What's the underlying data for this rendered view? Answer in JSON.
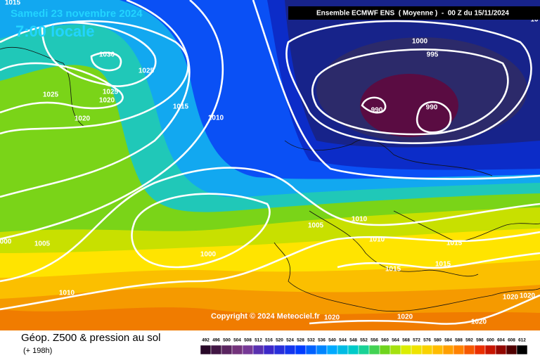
{
  "header": {
    "date": "Samedi 23 novembre 2024",
    "time": "7:00 locale",
    "model": "Ensemble ECMWF ENS  ( Moyenne )  -  00 Z du 15/11/2024"
  },
  "isobar_labels": [
    "1015",
    "1030",
    "1025",
    "1025",
    "1025",
    "1020",
    "1020",
    "1015",
    "1010",
    "1000",
    "995",
    "990",
    "990",
    "1005",
    "1010",
    "1010",
    "1000",
    "1005",
    "000",
    "1010",
    "1015",
    "1015",
    "1015",
    "1020",
    "1020",
    "1020",
    "1020",
    "1020",
    "10"
  ],
  "copyright": "Copyright © 2024 Meteociel.fr",
  "footer": {
    "title": "Géop. Z500 & pression au sol",
    "lead_time": "(+ 198h)"
  },
  "legend": {
    "values": [
      492,
      496,
      500,
      504,
      508,
      512,
      516,
      520,
      524,
      528,
      532,
      536,
      540,
      544,
      548,
      552,
      556,
      560,
      564,
      568,
      572,
      576,
      580,
      584,
      588,
      592,
      596,
      600,
      604,
      608,
      612
    ]
  }
}
